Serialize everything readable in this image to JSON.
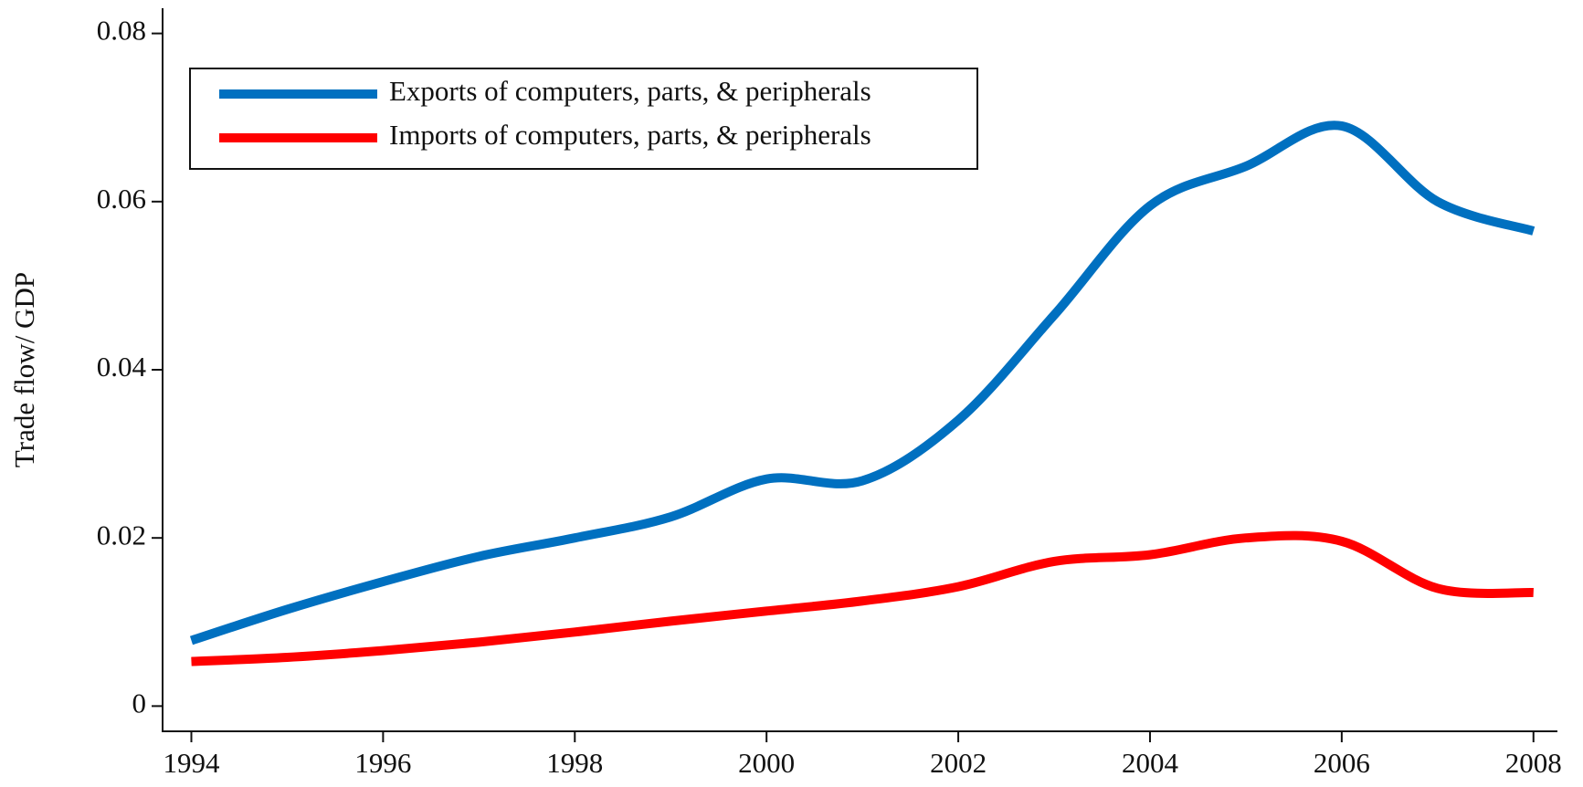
{
  "chart_data": {
    "type": "line",
    "y_label": "Trade flow/ GDP",
    "x": [
      1994,
      1995,
      1996,
      1997,
      1998,
      1999,
      2000,
      2001,
      2002,
      2003,
      2004,
      2005,
      2006,
      2007,
      2008
    ],
    "series": [
      {
        "name": "Exports of computers, parts, & peripherals",
        "color": "#0070c0",
        "values": [
          0.0078,
          0.0115,
          0.0148,
          0.0178,
          0.02,
          0.0225,
          0.027,
          0.0268,
          0.034,
          0.0465,
          0.0595,
          0.0642,
          0.069,
          0.06,
          0.0565
        ]
      },
      {
        "name": "Imports of computers, parts, & peripherals",
        "color": "#ff0000",
        "values": [
          0.0053,
          0.0058,
          0.0066,
          0.0076,
          0.0088,
          0.0101,
          0.0113,
          0.0125,
          0.0142,
          0.0172,
          0.018,
          0.02,
          0.0196,
          0.014,
          0.0135
        ]
      }
    ],
    "xlim": [
      1993.7,
      2008.25
    ],
    "xticks": [
      1994,
      1996,
      1998,
      2000,
      2002,
      2004,
      2006,
      2008
    ],
    "ylim": [
      -0.003,
      0.083
    ],
    "yticks": [
      0,
      0.02,
      0.04,
      0.06,
      0.08
    ],
    "legend": "upper left",
    "grid": false
  }
}
